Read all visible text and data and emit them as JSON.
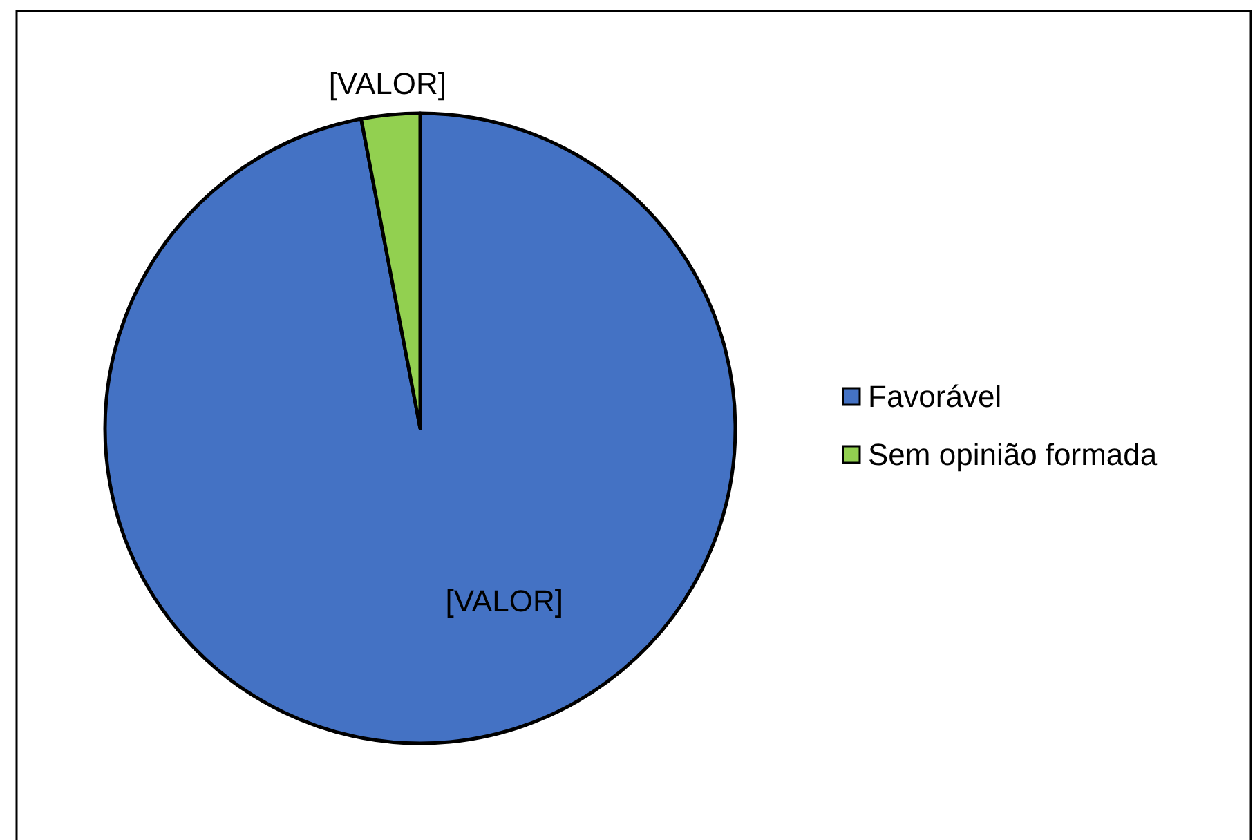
{
  "chart_data": {
    "type": "pie",
    "categories": [
      "Favorável",
      "Sem opinião formada"
    ],
    "values": [
      97,
      3
    ],
    "colors": [
      "#4472c4",
      "#92d050"
    ],
    "value_labels": [
      "[VALOR]",
      "[VALOR]"
    ],
    "legend": "right"
  }
}
